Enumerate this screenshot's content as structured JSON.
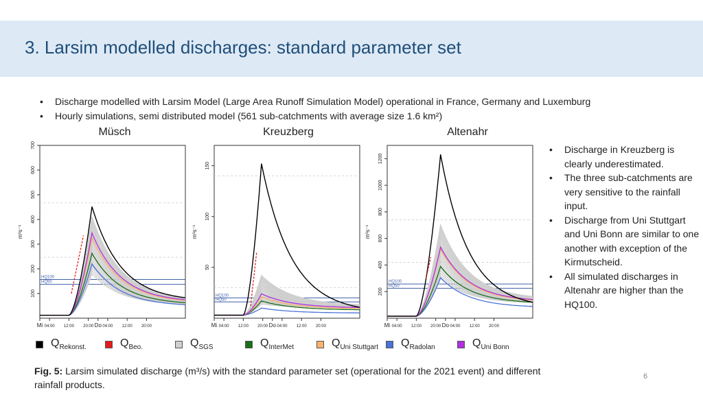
{
  "title": "3. Larsim modelled discharges: standard parameter set",
  "bullets_top": [
    "Discharge modelled with Larsim Model (Large Area Runoff Simulation Model) operational in France, Germany and Luxemburg",
    "Hourly simulations, semi distributed model (561 sub-catchments with average size 1.6 km²)"
  ],
  "side_bullets": [
    "Discharge in Kreuzberg is clearly underestimated.",
    "The three sub-catchments are very sensitive to the rainfall input.",
    "Discharge from Uni Stuttgart and Uni Bonn are similar to one another with exception of the Kirmutscheid.",
    "All simulated discharges in Altenahr are higher than the HQ100."
  ],
  "legend": [
    {
      "main": "Q",
      "sub": "Rekonst.",
      "color": "#000000"
    },
    {
      "main": "Q",
      "sub": "Beo.",
      "color": "#e41a1c"
    },
    {
      "main": "Q",
      "sub": "SGS",
      "color": "#cfcfcf"
    },
    {
      "main": "Q",
      "sub": "InterMet",
      "color": "#1b6e1b"
    },
    {
      "main": "Q",
      "sub": "Uni Stuttgart",
      "color": "#f7b36b"
    },
    {
      "main": "Q",
      "sub": "Radolan",
      "color": "#4a72d8"
    },
    {
      "main": "Q",
      "sub": "Uni Bonn",
      "color": "#b030e0"
    }
  ],
  "caption": {
    "label": "Fig. 5:",
    "text": "Larsim simulated discharge (m³/s) with the standard parameter set (operational for the 2021 event) and different rainfall products."
  },
  "page_number": "6",
  "chart_data": [
    {
      "type": "line",
      "title": "Müsch",
      "ylabel": "m³s⁻¹",
      "ylim": [
        0,
        700
      ],
      "yticks": [
        100,
        200,
        300,
        400,
        500,
        600,
        700
      ],
      "x_range": [
        0,
        60
      ],
      "x_ticks": [
        {
          "x": 0,
          "label": "Mi"
        },
        {
          "x": 4,
          "label": "04:00"
        },
        {
          "x": 12,
          "label": "12:00"
        },
        {
          "x": 20,
          "label": "20:00"
        },
        {
          "x": 24,
          "label": "Do"
        },
        {
          "x": 28,
          "label": "04:00"
        },
        {
          "x": 36,
          "label": "12:00"
        },
        {
          "x": 44,
          "label": "20:00"
        }
      ],
      "hlines": [
        {
          "label": "HQ100",
          "y": 157
        },
        {
          "label": "HQ50",
          "y": 137
        }
      ],
      "dashed_gridlines": [
        247,
        467
      ],
      "base": 12,
      "rise_start": 12,
      "rise_end": 21.5,
      "series": [
        {
          "key": "rekonst",
          "peak": 452,
          "end": 68
        },
        {
          "key": "beo",
          "start_x": 13,
          "start_y": 100,
          "end_x": 18,
          "end_y": 335
        },
        {
          "key": "sgs",
          "peak_min": 180,
          "peak_max": 410,
          "end": 52
        },
        {
          "key": "intermet",
          "peak": 263,
          "end": 55
        },
        {
          "key": "stuttgart",
          "peak": 325,
          "end": 62
        },
        {
          "key": "radolan",
          "peak": 220,
          "end": 48
        },
        {
          "key": "bonn",
          "peak": 345,
          "end": 64
        }
      ]
    },
    {
      "type": "line",
      "title": "Kreuzberg",
      "ylabel": "m³s⁻¹",
      "ylim": [
        0,
        170
      ],
      "yticks": [
        50,
        100,
        150
      ],
      "x_range": [
        0,
        60
      ],
      "x_ticks": [
        {
          "x": 0,
          "label": "Mi"
        },
        {
          "x": 4,
          "label": "04:00"
        },
        {
          "x": 12,
          "label": "12:00"
        },
        {
          "x": 20,
          "label": "20:00"
        },
        {
          "x": 24,
          "label": "Do"
        },
        {
          "x": 28,
          "label": "04:00"
        },
        {
          "x": 36,
          "label": "12:00"
        },
        {
          "x": 44,
          "label": "20:00"
        }
      ],
      "hlines": [
        {
          "label": "HQ100",
          "y": 20
        },
        {
          "label": "HQ50",
          "y": 16
        }
      ],
      "dashed_gridlines": [
        30,
        140
      ],
      "base": 3,
      "rise_start": 12,
      "rise_end": 19.5,
      "series": [
        {
          "key": "rekonst",
          "peak": 152,
          "end": 5
        },
        {
          "key": "beo",
          "start_x": 15,
          "start_y": 12,
          "end_x": 17.5,
          "end_y": 65
        },
        {
          "key": "sgs",
          "peak_min": 14,
          "peak_max": 42,
          "end": 10
        },
        {
          "key": "intermet",
          "peak": 17,
          "end": 8
        },
        {
          "key": "stuttgart",
          "peak": 21,
          "end": 9
        },
        {
          "key": "radolan",
          "peak": 10,
          "end": 5
        },
        {
          "key": "bonn",
          "peak": 24,
          "end": 10
        }
      ]
    },
    {
      "type": "line",
      "title": "Altenahr",
      "ylabel": "m³s⁻¹",
      "ylim": [
        0,
        1300
      ],
      "yticks": [
        200,
        400,
        600,
        800,
        1000,
        1200
      ],
      "x_range": [
        0,
        60
      ],
      "x_ticks": [
        {
          "x": 0,
          "label": "Mi"
        },
        {
          "x": 4,
          "label": "04:00"
        },
        {
          "x": 12,
          "label": "12:00"
        },
        {
          "x": 20,
          "label": "20:00"
        },
        {
          "x": 24,
          "label": "Do"
        },
        {
          "x": 28,
          "label": "04:00"
        },
        {
          "x": 36,
          "label": "12:00"
        },
        {
          "x": 44,
          "label": "20:00"
        }
      ],
      "hlines": [
        {
          "label": "HQ100",
          "y": 257
        },
        {
          "label": "HQ50",
          "y": 225
        }
      ],
      "dashed_gridlines": [
        420,
        740
      ],
      "base": 15,
      "rise_start": 12,
      "rise_end": 22,
      "series": [
        {
          "key": "rekonst",
          "peak": 1232,
          "end": 75
        },
        {
          "key": "beo",
          "start_x": 16,
          "start_y": 300,
          "end_x": 18,
          "end_y": 460
        },
        {
          "key": "sgs",
          "peak_min": 300,
          "peak_max": 700,
          "end": 110
        },
        {
          "key": "intermet",
          "peak": 390,
          "end": 110
        },
        {
          "key": "stuttgart",
          "peak": 520,
          "end": 120
        },
        {
          "key": "radolan",
          "peak": 305,
          "end": 80
        },
        {
          "key": "bonn",
          "peak": 535,
          "end": 125
        }
      ]
    }
  ]
}
